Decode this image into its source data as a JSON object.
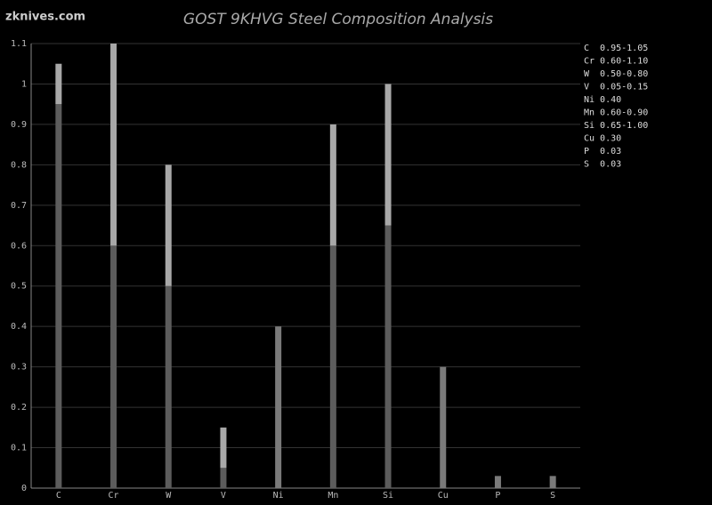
{
  "chart_data": {
    "type": "range_bar",
    "title": "GOST 9KHVG Steel Composition Analysis",
    "watermark": "zknives.com",
    "categories": [
      "C",
      "Cr",
      "W",
      "V",
      "Ni",
      "Mn",
      "Si",
      "Cu",
      "P",
      "S"
    ],
    "series": [
      {
        "name": "min",
        "color": "#5c5c5c",
        "values": [
          0.95,
          0.6,
          0.5,
          0.05,
          null,
          0.6,
          0.65,
          null,
          null,
          null
        ]
      },
      {
        "name": "max",
        "color": "#a8a8a8",
        "values": [
          1.05,
          1.1,
          0.8,
          0.15,
          0.4,
          0.9,
          1.0,
          0.3,
          0.03,
          0.03
        ]
      }
    ],
    "single_color": "#7a7a7a",
    "legend": [
      "C  0.95-1.05",
      "Cr 0.60-1.10",
      "W  0.50-0.80",
      "V  0.05-0.15",
      "Ni 0.40",
      "Mn 0.60-0.90",
      "Si 0.65-1.00",
      "Cu 0.30",
      "P  0.03",
      "S  0.03"
    ],
    "ylim": [
      0,
      1.1
    ],
    "yticks": [
      0,
      0.1,
      0.2,
      0.3,
      0.4,
      0.5,
      0.6,
      0.7,
      0.8,
      0.9,
      1,
      1.1
    ],
    "grid": true
  }
}
